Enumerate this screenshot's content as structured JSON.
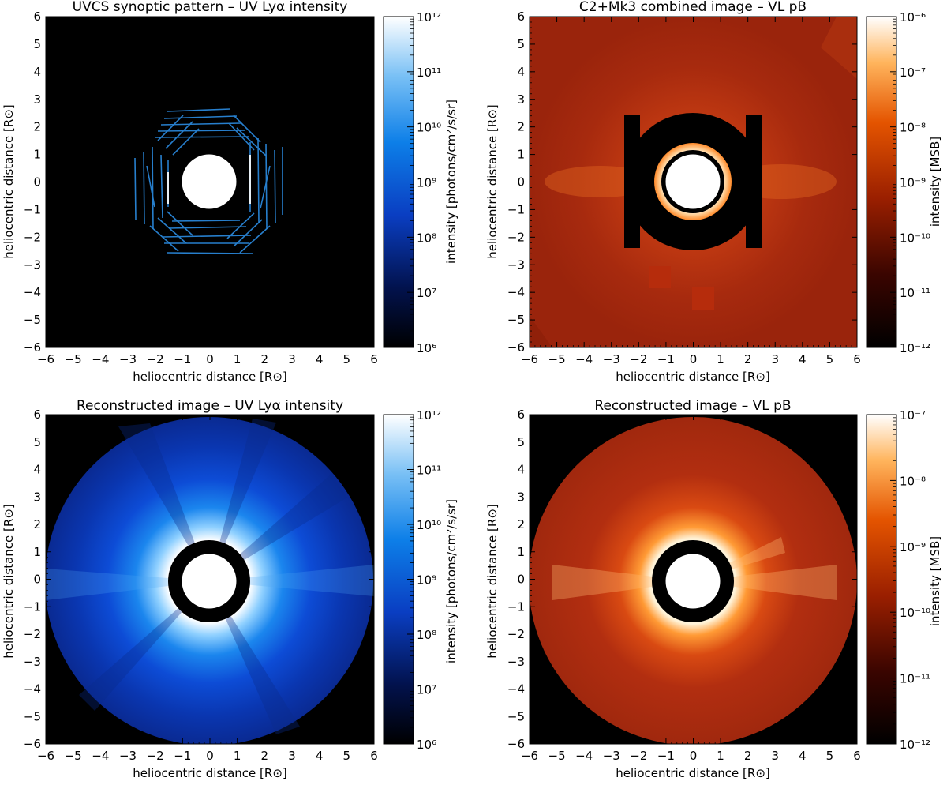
{
  "figure": {
    "panels": [
      {
        "title": "UVCS synoptic pattern – UV Lyα intensity",
        "xlabel": "heliocentric distance [R⊙]",
        "ylabel": "heliocentric distance [R⊙]",
        "colorbar_label": "intensity [photons/cm²/s/sr]",
        "colormap": "blue",
        "colorbar_ticks": [
          "10¹²",
          "10¹¹",
          "10¹⁰",
          "10⁹",
          "10⁸",
          "10⁷",
          "10⁶"
        ]
      },
      {
        "title": "C2+Mk3 combined image – VL pB",
        "xlabel": "heliocentric distance [R⊙]",
        "ylabel": "heliocentric distance [R⊙]",
        "colorbar_label": "intensity [MSB]",
        "colormap": "red",
        "colorbar_ticks": [
          "10⁻⁶",
          "10⁻⁷",
          "10⁻⁸",
          "10⁻⁹",
          "10⁻¹⁰",
          "10⁻¹¹",
          "10⁻¹²"
        ]
      },
      {
        "title": "Reconstructed image – UV Lyα intensity",
        "xlabel": "heliocentric distance [R⊙]",
        "ylabel": "heliocentric distance [R⊙]",
        "colorbar_label": "intensity [photons/cm²/s/sr]",
        "colormap": "blue",
        "colorbar_ticks": [
          "10¹²",
          "10¹¹",
          "10¹⁰",
          "10⁹",
          "10⁸",
          "10⁷",
          "10⁶"
        ]
      },
      {
        "title": "Reconstructed image – VL pB",
        "xlabel": "heliocentric distance [R⊙]",
        "ylabel": "heliocentric distance [R⊙]",
        "colorbar_label": "intensity [MSB]",
        "colormap": "red",
        "colorbar_ticks": [
          "10⁻⁷",
          "10⁻⁸",
          "10⁻⁹",
          "10⁻¹⁰",
          "10⁻¹¹",
          "10⁻¹²"
        ]
      }
    ]
  },
  "chart_data": [
    {
      "type": "heatmap",
      "title": "UVCS synoptic pattern – UV Lyα intensity",
      "xlabel": "heliocentric distance [R⊙]",
      "ylabel": "heliocentric distance [R⊙]",
      "xlim": [
        -6,
        6
      ],
      "ylim": [
        -6,
        6
      ],
      "x_ticks": [
        -6,
        -5,
        -4,
        -3,
        -2,
        -1,
        0,
        1,
        2,
        3,
        4,
        5,
        6
      ],
      "y_ticks": [
        -6,
        -5,
        -4,
        -3,
        -2,
        -1,
        0,
        1,
        2,
        3,
        4,
        5,
        6
      ],
      "colorbar": {
        "label": "intensity [photons/cm²/s/sr]",
        "scale": "log",
        "range": [
          1000000.0,
          1000000000000.0
        ]
      },
      "features": {
        "occulter_radius": 1.0,
        "slit_pattern_extent": [
          1.5,
          2.8
        ]
      }
    },
    {
      "type": "heatmap",
      "title": "C2+Mk3 combined image – VL pB",
      "xlabel": "heliocentric distance [R⊙]",
      "ylabel": "heliocentric distance [R⊙]",
      "xlim": [
        -6,
        6
      ],
      "ylim": [
        -6,
        6
      ],
      "x_ticks": [
        -6,
        -5,
        -4,
        -3,
        -2,
        -1,
        0,
        1,
        2,
        3,
        4,
        5,
        6
      ],
      "y_ticks": [
        -6,
        -5,
        -4,
        -3,
        -2,
        -1,
        0,
        1,
        2,
        3,
        4,
        5,
        6
      ],
      "colorbar": {
        "label": "intensity [MSB]",
        "scale": "log",
        "range": [
          1e-12,
          1e-06
        ]
      },
      "features": {
        "occulter_radius": 1.0,
        "dark_annulus": [
          1.05,
          1.15
        ],
        "bright_ring": [
          1.15,
          1.4
        ],
        "masked_radius": 2.5
      }
    },
    {
      "type": "heatmap",
      "title": "Reconstructed image – UV Lyα intensity",
      "xlabel": "heliocentric distance [R⊙]",
      "ylabel": "heliocentric distance [R⊙]",
      "xlim": [
        -6,
        6
      ],
      "ylim": [
        -6,
        6
      ],
      "x_ticks": [
        -6,
        -5,
        -4,
        -3,
        -2,
        -1,
        0,
        1,
        2,
        3,
        4,
        5,
        6
      ],
      "y_ticks": [
        -6,
        -5,
        -4,
        -3,
        -2,
        -1,
        0,
        1,
        2,
        3,
        4,
        5,
        6
      ],
      "colorbar": {
        "label": "intensity [photons/cm²/s/sr]",
        "scale": "log",
        "range": [
          1000000.0,
          1000000000000.0
        ]
      },
      "features": {
        "occulter_radius": 1.0,
        "inner_mask_radius": 1.5,
        "outer_radius": 6.0
      }
    },
    {
      "type": "heatmap",
      "title": "Reconstructed image – VL pB",
      "xlabel": "heliocentric distance [R⊙]",
      "ylabel": "heliocentric distance [R⊙]",
      "xlim": [
        -6,
        6
      ],
      "ylim": [
        -6,
        6
      ],
      "x_ticks": [
        -6,
        -5,
        -4,
        -3,
        -2,
        -1,
        0,
        1,
        2,
        3,
        4,
        5,
        6
      ],
      "y_ticks": [
        -6,
        -5,
        -4,
        -3,
        -2,
        -1,
        0,
        1,
        2,
        3,
        4,
        5,
        6
      ],
      "colorbar": {
        "label": "intensity [MSB]",
        "scale": "log",
        "range": [
          1e-12,
          1e-07
        ]
      },
      "features": {
        "occulter_radius": 1.0,
        "inner_mask_radius": 1.5,
        "outer_radius": 6.0
      }
    }
  ]
}
